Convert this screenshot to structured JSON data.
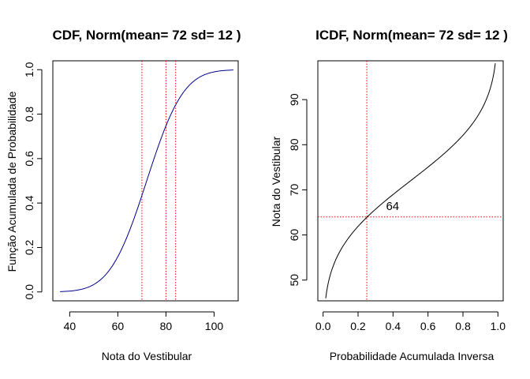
{
  "chart_data": [
    {
      "type": "line",
      "title": "CDF, Norm(mean= 72 sd= 12 )",
      "xlabel": "Nota do Vestibular",
      "ylabel": "Função Acumulada de Probabilidade",
      "xlim": [
        33,
        110
      ],
      "ylim": [
        -0.04,
        1.04
      ],
      "xticks": [
        "40",
        "60",
        "80",
        "100"
      ],
      "yticks": [
        "0.0",
        "0.2",
        "0.4",
        "0.6",
        "0.8",
        "1.0"
      ],
      "series": [
        {
          "color": "#00008b",
          "distribution": "normal",
          "mean": 72,
          "sd": 12,
          "x_range": [
            36,
            108
          ]
        }
      ],
      "vlines": [
        {
          "x": 70,
          "color": "#ff0000",
          "style": "dotted"
        },
        {
          "x": 80,
          "color": "#ff0000",
          "style": "dotted"
        },
        {
          "x": 84,
          "color": "#ff0000",
          "style": "dotted"
        }
      ],
      "grid": false
    },
    {
      "type": "line",
      "title": "ICDF, Norm(mean= 72 sd= 12 )",
      "xlabel": "Probabilidade Acumulada Inversa",
      "ylabel": "Nota do Vestibular",
      "xlim": [
        -0.03,
        1.03
      ],
      "ylim": [
        45.4,
        98.6
      ],
      "xticks": [
        "0.0",
        "0.2",
        "0.4",
        "0.6",
        "0.8",
        "1.0"
      ],
      "yticks": [
        "50",
        "60",
        "70",
        "80",
        "90"
      ],
      "series": [
        {
          "color": "#000000",
          "distribution": "normal-quantile",
          "mean": 72,
          "sd": 12,
          "p_range": [
            0.015,
            0.985
          ]
        }
      ],
      "vlines": [
        {
          "x": 0.25,
          "color": "#ff0000",
          "style": "dotted"
        }
      ],
      "hlines": [
        {
          "y": 64,
          "color": "#ff0000",
          "style": "dotted"
        }
      ],
      "annotations": [
        {
          "text": "64",
          "x": 0.36,
          "y": 65.5
        }
      ],
      "grid": false
    }
  ]
}
